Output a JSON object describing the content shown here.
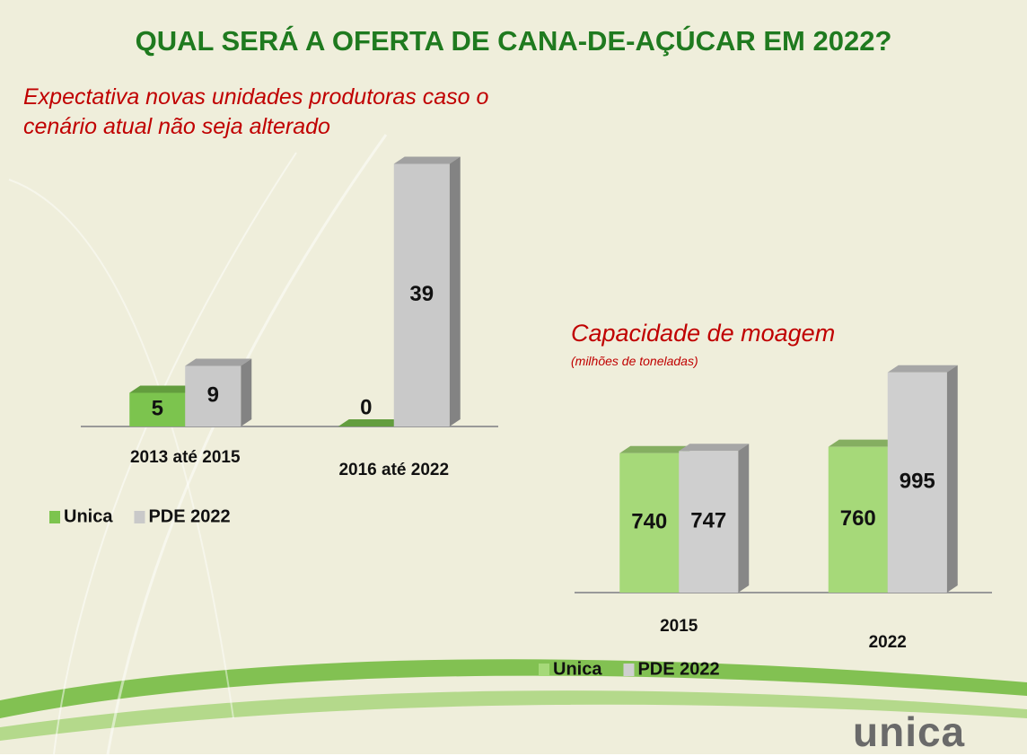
{
  "title": "QUAL SERÁ A OFERTA DE CANA-DE-AÇÚCAR EM 2022?",
  "logo": "unica",
  "chart_data": [
    {
      "type": "bar3d",
      "title": "Expectativa novas unidades produtoras caso o cenário atual não seja alterado",
      "categories": [
        "2013 até 2015",
        "2016 até 2022"
      ],
      "series": [
        {
          "name": "Unica",
          "color": "#7cc44e",
          "values": [
            5,
            0
          ]
        },
        {
          "name": "PDE 2022",
          "color": "#c9c9c9",
          "values": [
            9,
            39
          ]
        }
      ],
      "ylim": [
        0,
        40
      ]
    },
    {
      "type": "bar3d",
      "title": "Capacidade de moagem",
      "subtitle": "(milhões de toneladas)",
      "categories": [
        "2015",
        "2022"
      ],
      "series": [
        {
          "name": "Unica",
          "color": "#a6d979",
          "values": [
            740,
            760
          ]
        },
        {
          "name": "PDE 2022",
          "color": "#cfcfcf",
          "values": [
            747,
            995
          ]
        }
      ],
      "ylim": [
        300,
        1000
      ]
    }
  ]
}
